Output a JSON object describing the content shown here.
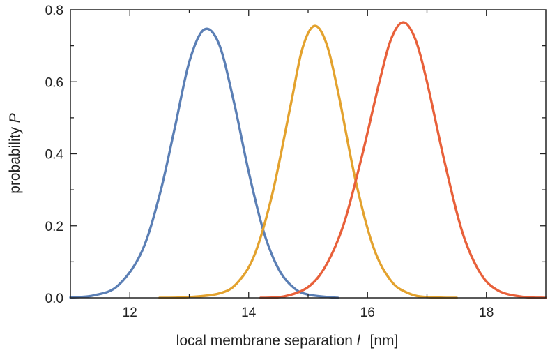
{
  "chart_data": {
    "type": "line",
    "title": "",
    "xlabel": {
      "text": "local membrane separation ",
      "symbol": "l",
      "unit": "[nm]"
    },
    "ylabel": {
      "text": "probability ",
      "symbol": "P"
    },
    "xlim": [
      11,
      19
    ],
    "ylim": [
      0,
      0.8
    ],
    "xticks": [
      12,
      14,
      16,
      18
    ],
    "xtick_labels": [
      "12",
      "14",
      "16",
      "18"
    ],
    "yticks": [
      0,
      0.2,
      0.4,
      0.6,
      0.8
    ],
    "ytick_labels": [
      "0.0",
      "0.2",
      "0.4",
      "0.6",
      "0.8"
    ],
    "grid": false,
    "legend": "none",
    "series": [
      {
        "color": "#5b7fb5",
        "x": [
          11.0,
          11.4,
          11.8,
          12.2,
          12.5,
          12.75,
          13.0,
          13.25,
          13.5,
          13.75,
          14.0,
          14.25,
          14.5,
          14.75,
          15.0,
          15.5
        ],
        "y": [
          0.001,
          0.007,
          0.034,
          0.128,
          0.285,
          0.467,
          0.655,
          0.745,
          0.705,
          0.545,
          0.35,
          0.185,
          0.081,
          0.029,
          0.009,
          0.0
        ]
      },
      {
        "color": "#e3a22e",
        "x": [
          12.5,
          13.0,
          13.5,
          13.8,
          14.1,
          14.4,
          14.7,
          14.9,
          15.1,
          15.3,
          15.5,
          15.8,
          16.1,
          16.4,
          16.7,
          17.0,
          17.5
        ],
        "y": [
          0.0,
          0.002,
          0.012,
          0.04,
          0.12,
          0.29,
          0.53,
          0.69,
          0.755,
          0.71,
          0.575,
          0.325,
          0.14,
          0.046,
          0.012,
          0.002,
          0.0
        ]
      },
      {
        "color": "#e8603a",
        "x": [
          14.2,
          14.6,
          15.0,
          15.3,
          15.6,
          15.9,
          16.2,
          16.4,
          16.6,
          16.8,
          17.0,
          17.3,
          17.6,
          17.9,
          18.2,
          18.6,
          19.0
        ],
        "y": [
          0.0,
          0.004,
          0.03,
          0.09,
          0.205,
          0.39,
          0.6,
          0.72,
          0.765,
          0.72,
          0.6,
          0.375,
          0.18,
          0.068,
          0.02,
          0.003,
          0.0
        ]
      }
    ]
  }
}
